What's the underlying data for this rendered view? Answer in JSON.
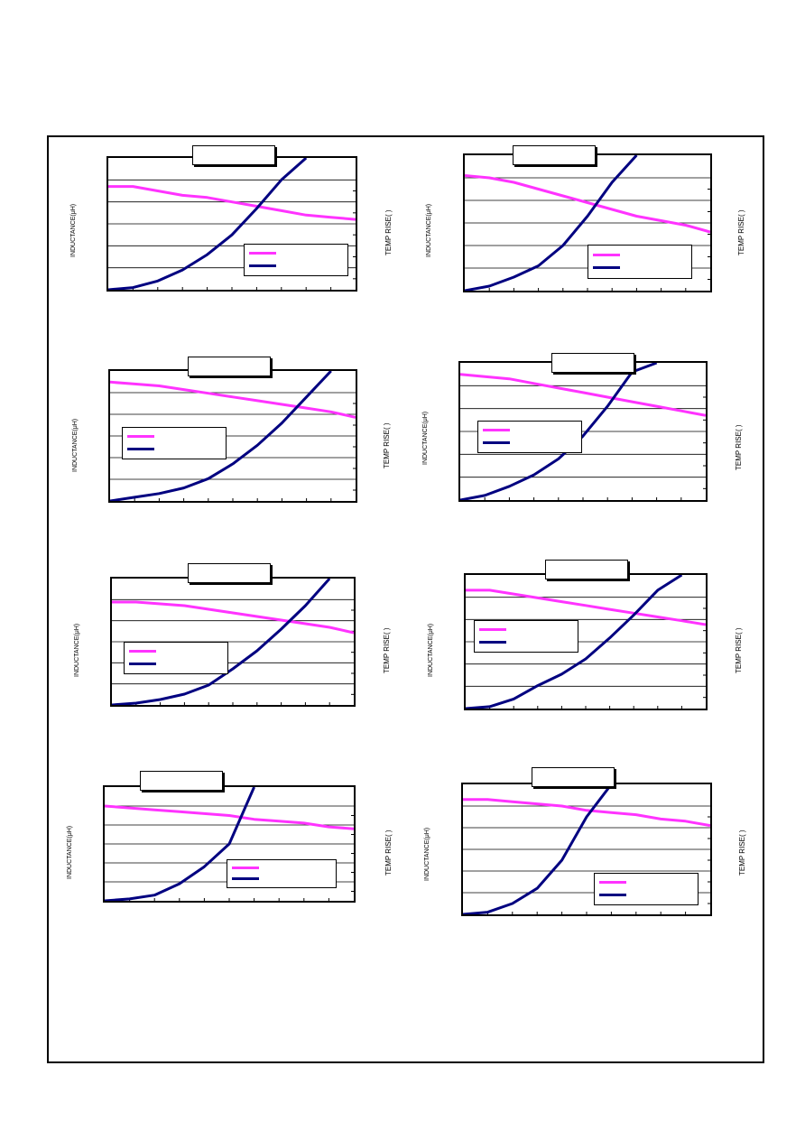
{
  "colors": {
    "inductance": "#ff33ff",
    "temp_rise": "#000080",
    "frame": "#000000"
  },
  "labels": {
    "ylabel": "INDUCTANCE(μH)",
    "y2label": "TEMP RISE(   )"
  },
  "chart_data": [
    {
      "type": "line",
      "xlim": [
        0,
        10
      ],
      "ylim": [
        0,
        6
      ],
      "y2lim": [
        0,
        6
      ],
      "series": [
        {
          "role": "inductance",
          "y_axis": "left",
          "x": [
            0,
            1,
            2,
            3,
            4,
            5,
            6,
            7,
            8,
            9,
            10
          ],
          "values": [
            4.7,
            4.7,
            4.5,
            4.3,
            4.2,
            4.0,
            3.8,
            3.6,
            3.4,
            3.3,
            3.2
          ]
        },
        {
          "role": "temp_rise",
          "y_axis": "right",
          "x": [
            0,
            1,
            2,
            3,
            4,
            5,
            6,
            7,
            8
          ],
          "values": [
            0,
            0.1,
            0.4,
            0.9,
            1.6,
            2.5,
            3.7,
            5.0,
            6.0
          ]
        }
      ]
    },
    {
      "type": "line",
      "xlim": [
        0,
        10
      ],
      "ylim": [
        0,
        6
      ],
      "y2lim": [
        0,
        6
      ],
      "series": [
        {
          "role": "inductance",
          "y_axis": "left",
          "x": [
            0,
            1,
            2,
            3,
            4,
            5,
            6,
            7,
            8,
            9,
            10
          ],
          "values": [
            5.1,
            5.0,
            4.8,
            4.5,
            4.2,
            3.9,
            3.6,
            3.3,
            3.1,
            2.9,
            2.6
          ]
        },
        {
          "role": "temp_rise",
          "y_axis": "right",
          "x": [
            0,
            1,
            2,
            3,
            4,
            5,
            6,
            7
          ],
          "values": [
            0,
            0.2,
            0.6,
            1.1,
            2.0,
            3.3,
            4.8,
            6.0
          ]
        }
      ]
    },
    {
      "type": "line",
      "xlim": [
        0,
        10
      ],
      "ylim": [
        0,
        7
      ],
      "y2lim": [
        0,
        7
      ],
      "series": [
        {
          "role": "inductance",
          "y_axis": "left",
          "x": [
            0,
            1,
            2,
            3,
            4,
            5,
            6,
            7,
            8,
            9,
            10
          ],
          "values": [
            6.4,
            6.3,
            6.2,
            6.0,
            5.8,
            5.6,
            5.4,
            5.2,
            5.0,
            4.8,
            4.5
          ]
        },
        {
          "role": "temp_rise",
          "y_axis": "right",
          "x": [
            0,
            1,
            2,
            3,
            4,
            5,
            6,
            7,
            8,
            9
          ],
          "values": [
            0,
            0.2,
            0.4,
            0.7,
            1.2,
            2.0,
            3.0,
            4.2,
            5.6,
            7.0
          ]
        }
      ]
    },
    {
      "type": "line",
      "xlim": [
        0,
        10
      ],
      "ylim": [
        0,
        6
      ],
      "y2lim": [
        0,
        6
      ],
      "series": [
        {
          "role": "inductance",
          "y_axis": "left",
          "x": [
            0,
            1,
            2,
            3,
            4,
            5,
            6,
            7,
            8,
            9,
            10
          ],
          "values": [
            5.5,
            5.4,
            5.3,
            5.1,
            4.9,
            4.7,
            4.5,
            4.3,
            4.1,
            3.9,
            3.7
          ]
        },
        {
          "role": "temp_rise",
          "y_axis": "right",
          "x": [
            0,
            1,
            2,
            3,
            4,
            5,
            6,
            7,
            8
          ],
          "values": [
            0,
            0.2,
            0.6,
            1.1,
            1.8,
            2.8,
            4.1,
            5.6,
            6.0
          ]
        }
      ]
    },
    {
      "type": "line",
      "xlim": [
        0,
        10
      ],
      "ylim": [
        0,
        7
      ],
      "y2lim": [
        0,
        7
      ],
      "series": [
        {
          "role": "inductance",
          "y_axis": "left",
          "x": [
            0,
            1,
            2,
            3,
            4,
            5,
            6,
            7,
            8,
            9,
            10
          ],
          "values": [
            5.7,
            5.7,
            5.6,
            5.5,
            5.3,
            5.1,
            4.9,
            4.7,
            4.5,
            4.3,
            4.0
          ]
        },
        {
          "role": "temp_rise",
          "y_axis": "right",
          "x": [
            0,
            1,
            2,
            3,
            4,
            5,
            6,
            7,
            8,
            9
          ],
          "values": [
            0,
            0.1,
            0.3,
            0.6,
            1.1,
            2.0,
            3.0,
            4.2,
            5.5,
            7.0
          ]
        }
      ]
    },
    {
      "type": "line",
      "xlim": [
        0,
        10
      ],
      "ylim": [
        0,
        7
      ],
      "y2lim": [
        0,
        7
      ],
      "series": [
        {
          "role": "inductance",
          "y_axis": "left",
          "x": [
            0,
            1,
            2,
            3,
            4,
            5,
            6,
            7,
            8,
            9,
            10
          ],
          "values": [
            6.2,
            6.2,
            6.0,
            5.8,
            5.6,
            5.4,
            5.2,
            5.0,
            4.8,
            4.6,
            4.4
          ]
        },
        {
          "role": "temp_rise",
          "y_axis": "right",
          "x": [
            0,
            1,
            2,
            3,
            4,
            5,
            6,
            7,
            8,
            9
          ],
          "values": [
            0,
            0.1,
            0.5,
            1.2,
            1.8,
            2.6,
            3.7,
            4.9,
            6.2,
            7.0
          ]
        }
      ]
    },
    {
      "type": "line",
      "xlim": [
        0,
        10
      ],
      "ylim": [
        0,
        6
      ],
      "y2lim": [
        0,
        6
      ],
      "series": [
        {
          "role": "inductance",
          "y_axis": "left",
          "x": [
            0,
            1,
            2,
            3,
            4,
            5,
            6,
            7,
            8,
            9,
            10
          ],
          "values": [
            5.0,
            4.9,
            4.8,
            4.7,
            4.6,
            4.5,
            4.3,
            4.2,
            4.1,
            3.9,
            3.8
          ]
        },
        {
          "role": "temp_rise",
          "y_axis": "right",
          "x": [
            0,
            1,
            2,
            3,
            4,
            5,
            6
          ],
          "values": [
            0,
            0.1,
            0.3,
            0.9,
            1.8,
            3.0,
            6.0
          ]
        }
      ]
    },
    {
      "type": "line",
      "xlim": [
        0,
        10
      ],
      "ylim": [
        0,
        6
      ],
      "y2lim": [
        0,
        6
      ],
      "series": [
        {
          "role": "inductance",
          "y_axis": "left",
          "x": [
            0,
            1,
            2,
            3,
            4,
            5,
            6,
            7,
            8,
            9,
            10
          ],
          "values": [
            5.3,
            5.3,
            5.2,
            5.1,
            5.0,
            4.8,
            4.7,
            4.6,
            4.4,
            4.3,
            4.1
          ]
        },
        {
          "role": "temp_rise",
          "y_axis": "right",
          "x": [
            0,
            1,
            2,
            3,
            4,
            5,
            6
          ],
          "values": [
            0,
            0.1,
            0.5,
            1.2,
            2.5,
            4.5,
            6.0
          ]
        }
      ]
    }
  ]
}
